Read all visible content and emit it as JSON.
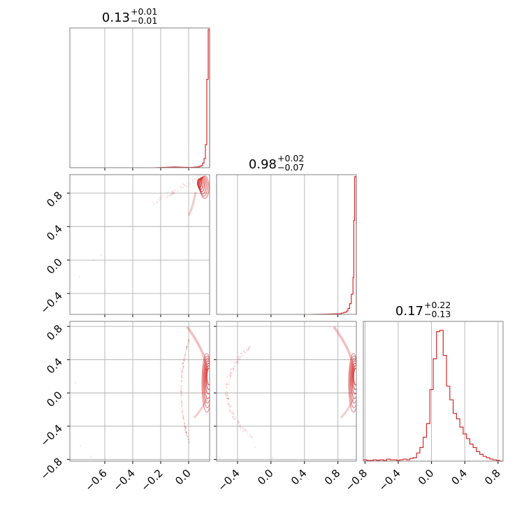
{
  "colors": {
    "series": "#d62728",
    "grid": "#b0b0b0",
    "frame": "#808080"
  },
  "chart_data": {
    "type": "corner",
    "panels": [
      {
        "kind": "hist",
        "row": 0,
        "col": 0,
        "title": {
          "value": "0.13",
          "upper": "+0.01",
          "lower": "−0.01"
        },
        "xlim": [
          -0.85,
          0.15
        ],
        "bin_edges": [
          0.0,
          0.02,
          0.04,
          0.06,
          0.08,
          0.09,
          0.1,
          0.11,
          0.12,
          0.13,
          0.14,
          0.15
        ],
        "counts": [
          0.3,
          0.5,
          0.8,
          1,
          2,
          3,
          6,
          12,
          30,
          115,
          180
        ],
        "faint": {
          "x": [
            -0.85,
            -0.25,
            -0.1,
            0.0
          ],
          "y": [
            0,
            0,
            1,
            0.4
          ]
        },
        "ymax": 182,
        "x_grid": [
          -0.6,
          -0.4,
          -0.2,
          0.0
        ]
      },
      {
        "kind": "scatter",
        "row": 1,
        "col": 0,
        "xlim": [
          -0.85,
          0.15
        ],
        "ylim": [
          -0.65,
          1.02
        ],
        "x_grid": [
          -0.6,
          -0.4,
          -0.2,
          0.0
        ],
        "y_grid": [
          -0.4,
          0.0,
          0.4,
          0.8
        ],
        "y_ticklabels": [
          "−0.4",
          "0.0",
          "0.4",
          "0.8"
        ]
      },
      {
        "kind": "hist",
        "row": 1,
        "col": 1,
        "title": {
          "value": "0.98",
          "upper": "+0.02",
          "lower": "−0.07"
        },
        "xlim": [
          -0.65,
          1.02
        ],
        "bin_edges": [
          0.8,
          0.84,
          0.87,
          0.9,
          0.92,
          0.94,
          0.96,
          0.98,
          0.99,
          1.0,
          1.02
        ],
        "counts": [
          1,
          2,
          3,
          5,
          9,
          16,
          30,
          55,
          140,
          205
        ],
        "faint": {
          "x": [
            -0.65,
            0.45,
            0.65,
            0.8
          ],
          "y": [
            0,
            0,
            0.5,
            1
          ]
        },
        "ymax": 208,
        "x_grid": [
          -0.4,
          0.0,
          0.4,
          0.8
        ]
      },
      {
        "kind": "scatter",
        "row": 2,
        "col": 0,
        "xlim": [
          -0.85,
          0.15
        ],
        "ylim": [
          -0.82,
          0.86
        ],
        "x_grid": [
          -0.6,
          -0.4,
          -0.2,
          0.0
        ],
        "y_grid": [
          -0.8,
          -0.4,
          0.0,
          0.4,
          0.8
        ],
        "x_ticklabels": [
          "−0.6",
          "−0.4",
          "−0.2",
          "0.0"
        ],
        "y_ticklabels": [
          "−0.8",
          "−0.4",
          "0.0",
          "0.4",
          "0.8"
        ]
      },
      {
        "kind": "scatter",
        "row": 2,
        "col": 1,
        "xlim": [
          -0.65,
          1.02
        ],
        "ylim": [
          -0.82,
          0.86
        ],
        "x_grid": [
          -0.4,
          0.0,
          0.4,
          0.8
        ],
        "y_grid": [
          -0.8,
          -0.4,
          0.0,
          0.4,
          0.8
        ],
        "x_ticklabels": [
          "−0.4",
          "0.0",
          "0.4",
          "0.8"
        ]
      },
      {
        "kind": "hist",
        "row": 2,
        "col": 2,
        "title": {
          "value": "0.17",
          "upper": "+0.22",
          "lower": "−0.13"
        },
        "xlim": [
          -0.82,
          0.86
        ],
        "bin_edges": [
          -0.82,
          -0.78,
          -0.74,
          -0.7,
          -0.66,
          -0.62,
          -0.58,
          -0.54,
          -0.5,
          -0.46,
          -0.42,
          -0.38,
          -0.34,
          -0.3,
          -0.26,
          -0.22,
          -0.18,
          -0.14,
          -0.1,
          -0.06,
          -0.02,
          0.02,
          0.06,
          0.1,
          0.14,
          0.18,
          0.22,
          0.26,
          0.3,
          0.34,
          0.38,
          0.42,
          0.46,
          0.5,
          0.54,
          0.58,
          0.62,
          0.66,
          0.7,
          0.74,
          0.78,
          0.82,
          0.86
        ],
        "counts": [
          2,
          1,
          1,
          2,
          1,
          2,
          1,
          3,
          2,
          2,
          1,
          2,
          3,
          2,
          4,
          5,
          12,
          20,
          35,
          55,
          105,
          150,
          190,
          192,
          155,
          110,
          90,
          70,
          62,
          50,
          40,
          33,
          25,
          20,
          14,
          10,
          7,
          5,
          3,
          2,
          1,
          0
        ],
        "ymax": 205,
        "x_grid": [
          -0.8,
          -0.4,
          0.0,
          0.4,
          0.8
        ],
        "x_ticklabels": [
          "−0.8",
          "−0.4",
          "0.0",
          "0.4",
          "0.8"
        ]
      }
    ]
  }
}
